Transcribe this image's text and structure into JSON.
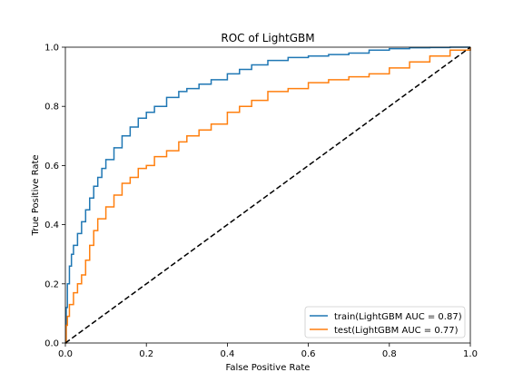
{
  "chart_data": {
    "type": "line",
    "title": "ROC of LightGBM",
    "xlabel": "False Positive Rate",
    "ylabel": "True Positive Rate",
    "xlim": [
      0.0,
      1.0
    ],
    "ylim": [
      0.0,
      1.0
    ],
    "xticks": [
      "0.0",
      "0.2",
      "0.4",
      "0.6",
      "0.8",
      "1.0"
    ],
    "yticks": [
      "0.0",
      "0.2",
      "0.4",
      "0.6",
      "0.8",
      "1.0"
    ],
    "grid": false,
    "legend_position": "lower-right",
    "series": [
      {
        "name": "train(LightGBM AUC = 0.87)",
        "color": "#1f77b4",
        "style": "solid",
        "x": [
          0.0,
          0.002,
          0.005,
          0.01,
          0.015,
          0.02,
          0.03,
          0.04,
          0.05,
          0.06,
          0.07,
          0.08,
          0.09,
          0.1,
          0.12,
          0.14,
          0.16,
          0.18,
          0.2,
          0.22,
          0.25,
          0.28,
          0.3,
          0.33,
          0.36,
          0.4,
          0.43,
          0.46,
          0.5,
          0.55,
          0.6,
          0.65,
          0.7,
          0.75,
          0.8,
          0.85,
          0.9,
          0.95,
          1.0
        ],
        "y": [
          0.0,
          0.12,
          0.2,
          0.26,
          0.3,
          0.33,
          0.37,
          0.41,
          0.45,
          0.49,
          0.53,
          0.56,
          0.59,
          0.62,
          0.66,
          0.7,
          0.73,
          0.76,
          0.78,
          0.8,
          0.83,
          0.85,
          0.86,
          0.875,
          0.89,
          0.91,
          0.925,
          0.94,
          0.955,
          0.965,
          0.97,
          0.975,
          0.98,
          0.99,
          0.995,
          0.998,
          0.999,
          1.0,
          1.0
        ]
      },
      {
        "name": "test(LightGBM AUC = 0.77)",
        "color": "#ff7f0e",
        "style": "solid",
        "x": [
          0.0,
          0.002,
          0.005,
          0.01,
          0.02,
          0.03,
          0.04,
          0.05,
          0.06,
          0.07,
          0.08,
          0.1,
          0.12,
          0.14,
          0.16,
          0.18,
          0.2,
          0.22,
          0.25,
          0.28,
          0.3,
          0.33,
          0.36,
          0.4,
          0.43,
          0.46,
          0.5,
          0.55,
          0.6,
          0.65,
          0.7,
          0.75,
          0.8,
          0.85,
          0.9,
          0.95,
          1.0
        ],
        "y": [
          0.0,
          0.06,
          0.09,
          0.13,
          0.17,
          0.2,
          0.23,
          0.28,
          0.33,
          0.38,
          0.42,
          0.46,
          0.5,
          0.54,
          0.56,
          0.59,
          0.6,
          0.63,
          0.65,
          0.68,
          0.7,
          0.72,
          0.74,
          0.78,
          0.8,
          0.82,
          0.85,
          0.86,
          0.88,
          0.89,
          0.9,
          0.91,
          0.93,
          0.95,
          0.97,
          0.99,
          1.0
        ]
      },
      {
        "color": "#000000",
        "style": "dashed",
        "x": [
          0.0,
          1.0
        ],
        "y": [
          0.0,
          1.0
        ]
      }
    ]
  }
}
